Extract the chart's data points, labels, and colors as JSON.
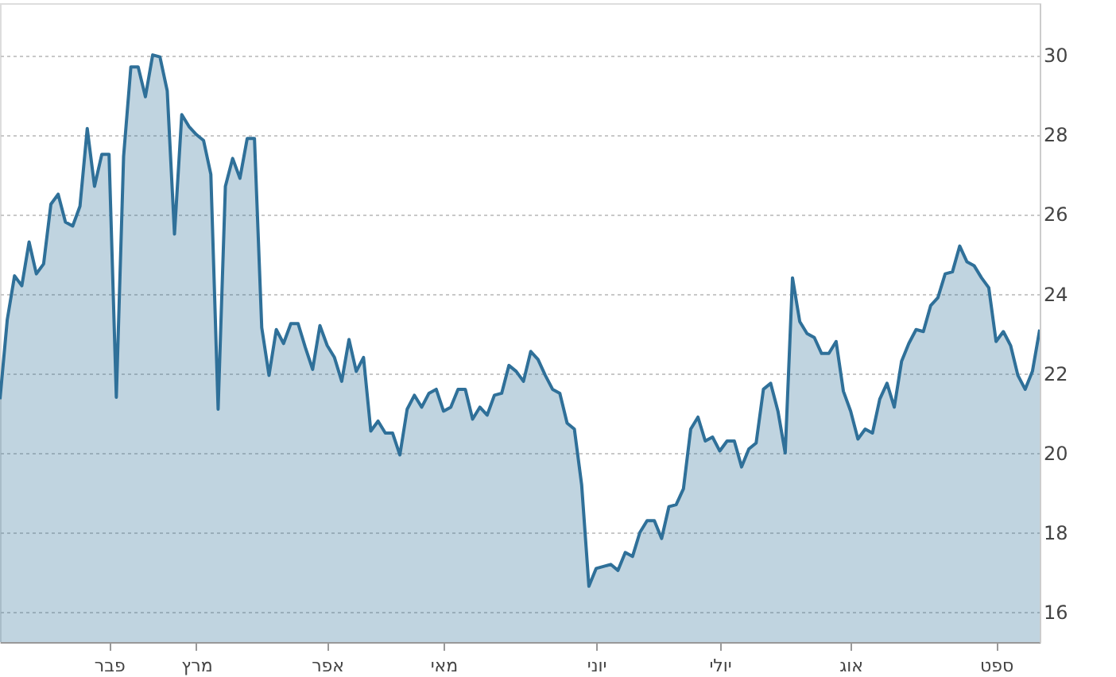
{
  "chart_data": {
    "type": "area",
    "categories": [
      null,
      null,
      null,
      null,
      null,
      null,
      null,
      null,
      null,
      null,
      null,
      null,
      null,
      null,
      null,
      "פבר",
      null,
      null,
      null,
      null,
      null,
      null,
      null,
      null,
      null,
      null,
      null,
      "מרץ",
      null,
      null,
      null,
      null,
      null,
      null,
      null,
      null,
      null,
      null,
      null,
      null,
      null,
      null,
      null,
      null,
      null,
      "אפר",
      null,
      null,
      null,
      null,
      null,
      null,
      null,
      null,
      null,
      null,
      null,
      null,
      null,
      null,
      null,
      "מאי",
      null,
      null,
      null,
      null,
      null,
      null,
      null,
      null,
      null,
      null,
      null,
      null,
      null,
      null,
      null,
      null,
      null,
      null,
      null,
      null,
      "יוני",
      null,
      null,
      null,
      null,
      null,
      null,
      null,
      null,
      null,
      null,
      null,
      null,
      null,
      null,
      null,
      null,
      "יולי",
      null,
      null,
      null,
      null,
      null,
      null,
      null,
      null,
      null,
      null,
      null,
      null,
      null,
      null,
      null,
      null,
      null,
      "אוג",
      null,
      null,
      null,
      null,
      null,
      null,
      null,
      null,
      null,
      null,
      null,
      null,
      null,
      null,
      null,
      null,
      null,
      null,
      null,
      "ספט",
      null,
      null,
      null,
      null,
      null,
      null
    ],
    "series": [
      {
        "color": "#2f7099",
        "values": [
          21.35,
          23.35,
          24.45,
          24.2,
          25.3,
          24.5,
          24.75,
          26.25,
          26.5,
          25.8,
          25.7,
          26.2,
          28.15,
          26.7,
          27.5,
          27.5,
          21.4,
          27.45,
          29.7,
          29.7,
          28.95,
          30.0,
          29.95,
          29.1,
          25.5,
          28.5,
          28.2,
          28.0,
          27.85,
          27.0,
          21.1,
          26.7,
          27.4,
          26.9,
          27.9,
          27.9,
          23.15,
          21.95,
          23.1,
          22.75,
          23.25,
          23.25,
          22.65,
          22.1,
          23.2,
          22.7,
          22.4,
          21.8,
          22.85,
          22.05,
          22.4,
          20.55,
          20.8,
          20.5,
          20.5,
          19.95,
          21.1,
          21.45,
          21.15,
          21.5,
          21.6,
          21.05,
          21.15,
          21.6,
          21.6,
          20.85,
          21.15,
          20.95,
          21.45,
          21.5,
          22.2,
          22.05,
          21.8,
          22.55,
          22.35,
          21.95,
          21.6,
          21.5,
          20.75,
          20.6,
          19.2,
          16.65,
          17.1,
          17.15,
          17.2,
          17.05,
          17.5,
          17.4,
          18.0,
          18.3,
          18.3,
          17.85,
          18.65,
          18.7,
          19.1,
          20.6,
          20.9,
          20.3,
          20.4,
          20.05,
          20.3,
          20.3,
          19.65,
          20.1,
          20.25,
          21.6,
          21.75,
          21.05,
          20.0,
          24.4,
          23.3,
          23.0,
          22.9,
          22.5,
          22.5,
          22.8,
          21.55,
          21.05,
          20.35,
          20.6,
          20.5,
          21.35,
          21.75,
          21.15,
          22.3,
          22.75,
          23.1,
          23.05,
          23.7,
          23.9,
          24.5,
          24.55,
          25.2,
          24.8,
          24.7,
          24.4,
          24.15,
          22.8,
          23.05,
          22.7,
          21.95,
          21.6,
          22.05,
          23.1
        ]
      }
    ],
    "ylim": [
      15.25,
      31.3
    ],
    "yticks": [
      16,
      18,
      20,
      22,
      24,
      26,
      28,
      30
    ],
    "grid": "y"
  }
}
